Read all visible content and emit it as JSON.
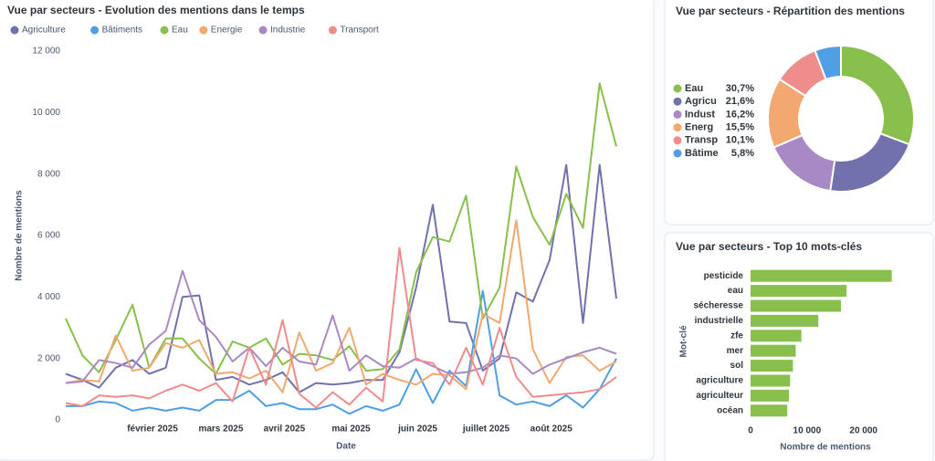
{
  "chart_data": [
    {
      "type": "line",
      "title": "Vue par secteurs - Evolution des mentions dans le temps",
      "x_label": "Date",
      "y_label": "Nombre de mentions",
      "categories": [
        null,
        null,
        null,
        null,
        null,
        null,
        null,
        null,
        null,
        null,
        null,
        null,
        null,
        null,
        null,
        null,
        null,
        null,
        null,
        null,
        null,
        null,
        null,
        null,
        null,
        null,
        null,
        null,
        null,
        null,
        null,
        null,
        null,
        null
      ],
      "xticks": [
        {
          "value": 5.2,
          "label": "février 2025"
        },
        {
          "value": 9.3,
          "label": "mars 2025"
        },
        {
          "value": 13.1,
          "label": "avril 2025"
        },
        {
          "value": 17.1,
          "label": "mai 2025"
        },
        {
          "value": 21.1,
          "label": "juin 2025"
        },
        {
          "value": 25.2,
          "label": "juillet 2025"
        },
        {
          "value": 29.1,
          "label": "août 2025"
        }
      ],
      "ylim": [
        0,
        12000
      ],
      "yticks": [
        0,
        {
          "value": 2000,
          "label": "2 000"
        },
        {
          "value": 4000,
          "label": "4 000"
        },
        {
          "value": 6000,
          "label": "6 000"
        },
        {
          "value": 8000,
          "label": "8 000"
        },
        {
          "value": 10000,
          "label": "10 000"
        },
        {
          "value": 12000,
          "label": "12 000"
        }
      ],
      "grid": false,
      "series": [
        {
          "name": "Agriculture",
          "color": "#7172ad",
          "values": [
            1500,
            1300,
            1050,
            1700,
            1950,
            1500,
            1700,
            4000,
            4050,
            1300,
            1400,
            1150,
            1300,
            1550,
            900,
            1200,
            1150,
            1200,
            1300,
            1300,
            2200,
            4300,
            7000,
            3200,
            3150,
            1600,
            2000,
            4150,
            3850,
            5200,
            8300,
            3150,
            8300,
            3950
          ]
        },
        {
          "name": "Bâtiments",
          "color": "#509ee3",
          "values": [
            450,
            450,
            600,
            550,
            300,
            400,
            300,
            400,
            300,
            650,
            650,
            950,
            450,
            550,
            350,
            350,
            500,
            200,
            450,
            300,
            500,
            1650,
            550,
            1600,
            1100,
            4200,
            800,
            500,
            600,
            450,
            800,
            400,
            1000,
            2000
          ]
        },
        {
          "name": "Eau",
          "color": "#88bf4d",
          "values": [
            3300,
            2100,
            1550,
            2600,
            3750,
            1700,
            2650,
            2650,
            2000,
            1500,
            2550,
            2350,
            2650,
            1800,
            2150,
            2100,
            1950,
            2400,
            1600,
            1650,
            2300,
            4800,
            5950,
            5800,
            7300,
            3300,
            4300,
            8250,
            6600,
            5700,
            7350,
            6250,
            10950,
            8900
          ]
        },
        {
          "name": "Energie",
          "color": "#f2a86f",
          "values": [
            1200,
            1300,
            1250,
            2750,
            1600,
            1700,
            2500,
            2350,
            2600,
            1500,
            1550,
            1350,
            1600,
            900,
            2850,
            1600,
            1850,
            3000,
            1150,
            1500,
            1300,
            1150,
            1500,
            1450,
            1000,
            3450,
            3150,
            6500,
            2300,
            1200,
            2050,
            2100,
            1600,
            1900
          ]
        },
        {
          "name": "Industrie",
          "color": "#a989c5",
          "values": [
            1200,
            1250,
            1950,
            1850,
            1700,
            2450,
            2900,
            4850,
            3250,
            2700,
            1900,
            2350,
            1750,
            2350,
            1900,
            1800,
            3400,
            1600,
            2100,
            1750,
            1700,
            2000,
            1750,
            1500,
            1550,
            1700,
            2100,
            2000,
            1500,
            1800,
            2000,
            2200,
            2350,
            2150
          ]
        },
        {
          "name": "Transport",
          "color": "#ef8c8c",
          "values": [
            550,
            450,
            800,
            750,
            800,
            700,
            950,
            1150,
            950,
            1200,
            600,
            2350,
            1150,
            3250,
            850,
            400,
            900,
            500,
            1050,
            600,
            5600,
            1950,
            1850,
            1150,
            2350,
            1150,
            3000,
            1400,
            750,
            800,
            850,
            900,
            1000,
            1400
          ]
        }
      ]
    },
    {
      "type": "pie",
      "donut": true,
      "title": "Vue par secteurs - Répartition des mentions",
      "categories": [
        "Eau",
        "Agricu",
        "Indust",
        "Energ",
        "Transp",
        "Bâtime"
      ],
      "values": [
        30.7,
        21.6,
        16.2,
        15.5,
        10.1,
        5.8
      ],
      "value_labels": [
        "30,7%",
        "21,6%",
        "16,2%",
        "15,5%",
        "10,1%",
        "5,8%"
      ],
      "colors": [
        "#88bf4d",
        "#7172ad",
        "#a989c5",
        "#f2a86f",
        "#ef8c8c",
        "#509ee3"
      ]
    },
    {
      "type": "bar",
      "horizontal": true,
      "title": "Vue par secteurs - Top 10 mots-clés",
      "x_label": "Nombre de mentions",
      "y_label": "Mot-clé",
      "categories": [
        "pesticide",
        "eau",
        "sécheresse",
        "industrielle",
        "zfe",
        "mer",
        "sol",
        "agriculture",
        "agriculteur",
        "océan"
      ],
      "values": [
        25000,
        17000,
        16000,
        12000,
        9000,
        8000,
        7500,
        7000,
        6800,
        6500
      ],
      "color": "#88bf4d",
      "xlim": [
        0,
        27000
      ],
      "xticks": [
        0,
        {
          "value": 10000,
          "label": "10 000"
        },
        {
          "value": 20000,
          "label": "20 000"
        }
      ]
    }
  ]
}
